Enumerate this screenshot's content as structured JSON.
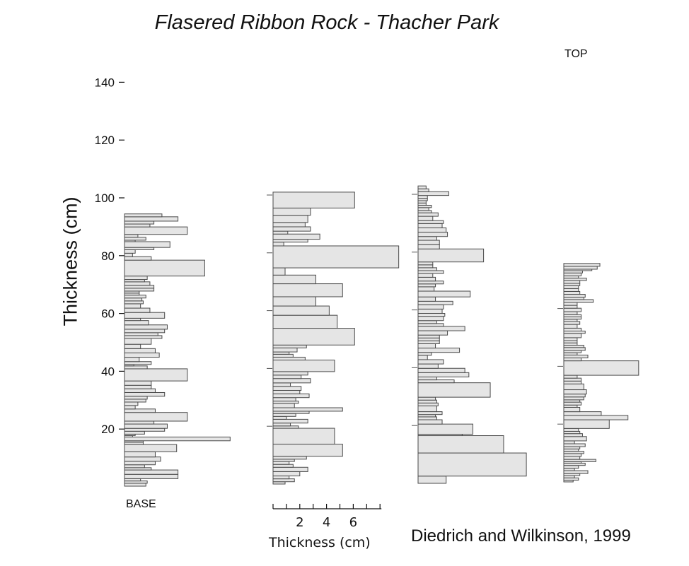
{
  "chart_data": {
    "type": "bar",
    "orientation": "horizontal",
    "title": "Flasered Ribbon Rock - Thacher Park",
    "ylabel": "Thickness (cm)",
    "xlabel": "Thickness (cm)",
    "ylim": [
      0,
      150
    ],
    "y_ticks": [
      20,
      40,
      60,
      80,
      100,
      120,
      140
    ],
    "x_scale_ticks": [
      2,
      4,
      6
    ],
    "x_scale_range": [
      0,
      8
    ],
    "grid": false,
    "columns": [
      {
        "label": "BASE",
        "label_position": "bottom",
        "beds": [
          [
            1,
            1.6
          ],
          [
            0.8,
            1.7
          ],
          [
            0.8,
            1.2
          ],
          [
            1.5,
            4
          ],
          [
            1.5,
            4
          ],
          [
            0.8,
            2
          ],
          [
            1,
            1.5
          ],
          [
            1.2,
            2.3
          ],
          [
            1.5,
            2.7
          ],
          [
            1.8,
            2.3
          ],
          [
            2.5,
            3.9
          ],
          [
            0.8,
            1.4
          ],
          [
            0.5,
            1.4
          ],
          [
            1.3,
            7.9
          ],
          [
            0.5,
            0.6
          ],
          [
            0.5,
            0.8
          ],
          [
            1,
            1.5
          ],
          [
            1,
            3
          ],
          [
            1.5,
            3.2
          ],
          [
            1,
            2.2
          ],
          [
            3,
            4.7
          ],
          [
            1.2,
            2.3
          ],
          [
            1.2,
            0.8
          ],
          [
            1.2,
            1
          ],
          [
            1,
            1.6
          ],
          [
            1,
            1.7
          ],
          [
            1.3,
            3
          ],
          [
            1.3,
            2.3
          ],
          [
            1.2,
            2
          ],
          [
            1.5,
            2
          ],
          [
            4.2,
            4.7
          ],
          [
            1,
            1.7
          ],
          [
            0.5,
            0.7
          ],
          [
            1,
            2
          ],
          [
            1.5,
            1.1
          ],
          [
            1.5,
            2.6
          ],
          [
            1.5,
            2.3
          ],
          [
            1.5,
            1.2
          ],
          [
            2,
            2
          ],
          [
            1,
            2.8
          ],
          [
            1,
            2.5
          ],
          [
            1.2,
            3
          ],
          [
            1.5,
            3.2
          ],
          [
            1.5,
            1.8
          ],
          [
            0.8,
            1.2
          ],
          [
            2,
            3
          ],
          [
            1.5,
            1.9
          ],
          [
            1.5,
            1.2
          ],
          [
            1,
            1.4
          ],
          [
            1,
            1.3
          ],
          [
            1,
            1.6
          ],
          [
            0.7,
            1.1
          ],
          [
            0.7,
            1.1
          ],
          [
            1,
            2.2
          ],
          [
            1,
            2.2
          ],
          [
            1.2,
            1.9
          ],
          [
            0.8,
            1.5
          ],
          [
            1.2,
            1.7
          ],
          [
            5.5,
            6
          ],
          [
            1.2,
            2
          ],
          [
            1.2,
            0.6
          ],
          [
            1.2,
            0.8
          ],
          [
            0.8,
            2.2
          ],
          [
            2,
            3.4
          ],
          [
            0.5,
            0.8
          ],
          [
            1,
            1.6
          ],
          [
            1,
            1
          ],
          [
            2.6,
            4.7
          ],
          [
            1,
            1.9
          ],
          [
            1,
            2.2
          ],
          [
            1.5,
            4
          ],
          [
            1,
            2.8
          ]
        ]
      },
      {
        "label": "",
        "label_position": "",
        "beds": [
          [
            0.8,
            0.9
          ],
          [
            1,
            1.6
          ],
          [
            1,
            1.2
          ],
          [
            1.5,
            2
          ],
          [
            1.5,
            2.6
          ],
          [
            1,
            1.5
          ],
          [
            1,
            1.2
          ],
          [
            0.8,
            1.6
          ],
          [
            1,
            2.5
          ],
          [
            4.2,
            5.2
          ],
          [
            5.5,
            4.6
          ],
          [
            0.8,
            1.9
          ],
          [
            1,
            1.3
          ],
          [
            1.3,
            2.6
          ],
          [
            1,
            1
          ],
          [
            1,
            1.7
          ],
          [
            0.8,
            2.7
          ],
          [
            1.2,
            5.2
          ],
          [
            1.5,
            1.6
          ],
          [
            0.8,
            1.9
          ],
          [
            1.2,
            1.7
          ],
          [
            1.3,
            2.7
          ],
          [
            1.2,
            2
          ],
          [
            1.4,
            2.1
          ],
          [
            1.2,
            1.3
          ],
          [
            1.5,
            2.8
          ],
          [
            1.2,
            2.1
          ],
          [
            1.2,
            2.6
          ],
          [
            4,
            4.6
          ],
          [
            1,
            2.4
          ],
          [
            1,
            1.5
          ],
          [
            0.8,
            1.2
          ],
          [
            1.4,
            1.8
          ],
          [
            1,
            2.5
          ],
          [
            5.8,
            6.1
          ],
          [
            4.5,
            4.8
          ],
          [
            3.2,
            4.2
          ],
          [
            3.2,
            3.2
          ],
          [
            4.5,
            5.2
          ],
          [
            3,
            3.2
          ],
          [
            2.5,
            0.9
          ],
          [
            7.6,
            9.4
          ],
          [
            1.3,
            0.8
          ],
          [
            1,
            2.6
          ],
          [
            1.8,
            3.5
          ],
          [
            1,
            1.1
          ],
          [
            1.5,
            2.8
          ],
          [
            1.5,
            2.4
          ],
          [
            2.5,
            2.6
          ],
          [
            2.5,
            2.8
          ],
          [
            5.5,
            6.1
          ]
        ]
      },
      {
        "label": "",
        "label_position": "",
        "beds": [
          [
            2.5,
            2.1
          ],
          [
            8,
            8.1
          ],
          [
            6,
            6.4
          ],
          [
            0.5,
            3.3
          ],
          [
            3.5,
            4.1
          ],
          [
            1.5,
            1.8
          ],
          [
            1,
            1.4
          ],
          [
            0.8,
            1.3
          ],
          [
            1,
            1.8
          ],
          [
            2,
            1.4
          ],
          [
            1,
            1.5
          ],
          [
            1,
            1.4
          ],
          [
            1,
            1.3
          ],
          [
            5,
            5.4
          ],
          [
            1,
            2.7
          ],
          [
            1,
            1.4
          ],
          [
            1.5,
            3.8
          ],
          [
            1.5,
            3.5
          ],
          [
            1.5,
            1.5
          ],
          [
            1.5,
            1.9
          ],
          [
            1.5,
            0.7
          ],
          [
            1,
            1
          ],
          [
            1.5,
            3.1
          ],
          [
            1.5,
            1.3
          ],
          [
            1,
            1.6
          ],
          [
            1,
            1.6
          ],
          [
            1,
            1.6
          ],
          [
            1.5,
            2.2
          ],
          [
            1.5,
            3.5
          ],
          [
            1,
            1.9
          ],
          [
            1,
            1.4
          ],
          [
            1.5,
            1.9
          ],
          [
            1,
            2
          ],
          [
            1.5,
            1.8
          ],
          [
            1.5,
            1.9
          ],
          [
            1.2,
            2.6
          ],
          [
            1.5,
            1.3
          ],
          [
            2,
            3.9
          ],
          [
            1.5,
            1.2
          ],
          [
            1,
            1.3
          ],
          [
            1,
            1.9
          ],
          [
            1.3,
            1.3
          ],
          [
            1.3,
            1.1
          ],
          [
            1,
            1.9
          ],
          [
            1,
            1.4
          ],
          [
            1,
            1.1
          ],
          [
            1,
            1.1
          ],
          [
            4.5,
            4.9
          ],
          [
            1.5,
            1.6
          ],
          [
            1.5,
            1.6
          ],
          [
            1.3,
            1.4
          ],
          [
            1.5,
            2.2
          ],
          [
            1.5,
            2.1
          ],
          [
            1.5,
            1.8
          ],
          [
            1,
            1.9
          ],
          [
            1.5,
            1.1
          ],
          [
            1.2,
            1.5
          ],
          [
            0.8,
            1
          ],
          [
            1,
            0.8
          ],
          [
            0.8,
            1
          ],
          [
            0.8,
            0.6
          ],
          [
            0.8,
            0.6
          ],
          [
            0.8,
            0.7
          ],
          [
            1,
            0.7
          ],
          [
            1.3,
            2.3
          ],
          [
            1,
            0.8
          ],
          [
            1,
            0.6
          ]
        ]
      },
      {
        "label": "TOP",
        "label_position": "top",
        "beds": [
          [
            0.6,
            0.7
          ],
          [
            0.8,
            1.1
          ],
          [
            0.8,
            0.8
          ],
          [
            0.7,
            1.2
          ],
          [
            1,
            1.8
          ],
          [
            0.8,
            0.8
          ],
          [
            1,
            1.1
          ],
          [
            0.8,
            1.6
          ],
          [
            0.5,
            1.3
          ],
          [
            0.8,
            2.4
          ],
          [
            1,
            1.2
          ],
          [
            1,
            1.3
          ],
          [
            0.8,
            1.5
          ],
          [
            0.8,
            1.1
          ],
          [
            0.8,
            1.2
          ],
          [
            1,
            1.6
          ],
          [
            1,
            0.8
          ],
          [
            1.5,
            1.7
          ],
          [
            1,
            1.4
          ],
          [
            0.8,
            1.2
          ],
          [
            1,
            1.1
          ],
          [
            3,
            3.4
          ],
          [
            1.5,
            4.8
          ],
          [
            1.3,
            2.8
          ],
          [
            1.5,
            1.2
          ],
          [
            0.8,
            1
          ],
          [
            1,
            1.3
          ],
          [
            0.8,
            1.2
          ],
          [
            1,
            1.5
          ],
          [
            1,
            1.6
          ],
          [
            1.5,
            1.7
          ],
          [
            2,
            1.5
          ],
          [
            1,
            1.3
          ],
          [
            1,
            1.3
          ],
          [
            1,
            1
          ],
          [
            5,
            5.6
          ],
          [
            1,
            1.3
          ],
          [
            1,
            1.8
          ],
          [
            0.8,
            1
          ],
          [
            0.8,
            1.3
          ],
          [
            1,
            1.6
          ],
          [
            0.8,
            1.5
          ],
          [
            0.8,
            1
          ],
          [
            0.8,
            1
          ],
          [
            1,
            1
          ],
          [
            1.5,
            1.3
          ],
          [
            0.8,
            1.6
          ],
          [
            1,
            1.3
          ],
          [
            1.3,
            1
          ],
          [
            1,
            1.2
          ],
          [
            0.8,
            1
          ],
          [
            0.8,
            1.3
          ],
          [
            0.8,
            1.3
          ],
          [
            1,
            1
          ],
          [
            1.2,
            1.3
          ],
          [
            1,
            1
          ],
          [
            1,
            1
          ],
          [
            1,
            2.2
          ],
          [
            0.8,
            1.5
          ],
          [
            1,
            1.6
          ],
          [
            1,
            1.2
          ],
          [
            1,
            1.1
          ],
          [
            1,
            1.1
          ],
          [
            0.8,
            1.2
          ],
          [
            1,
            1.2
          ],
          [
            0.8,
            1.7
          ],
          [
            0.8,
            1.1
          ],
          [
            1,
            1.3
          ],
          [
            0.8,
            1.4
          ],
          [
            0.5,
            2.1
          ],
          [
            1,
            2.5
          ],
          [
            1,
            2.7
          ]
        ]
      }
    ]
  },
  "credit": "Diedrich and Wilkinson, 1999"
}
